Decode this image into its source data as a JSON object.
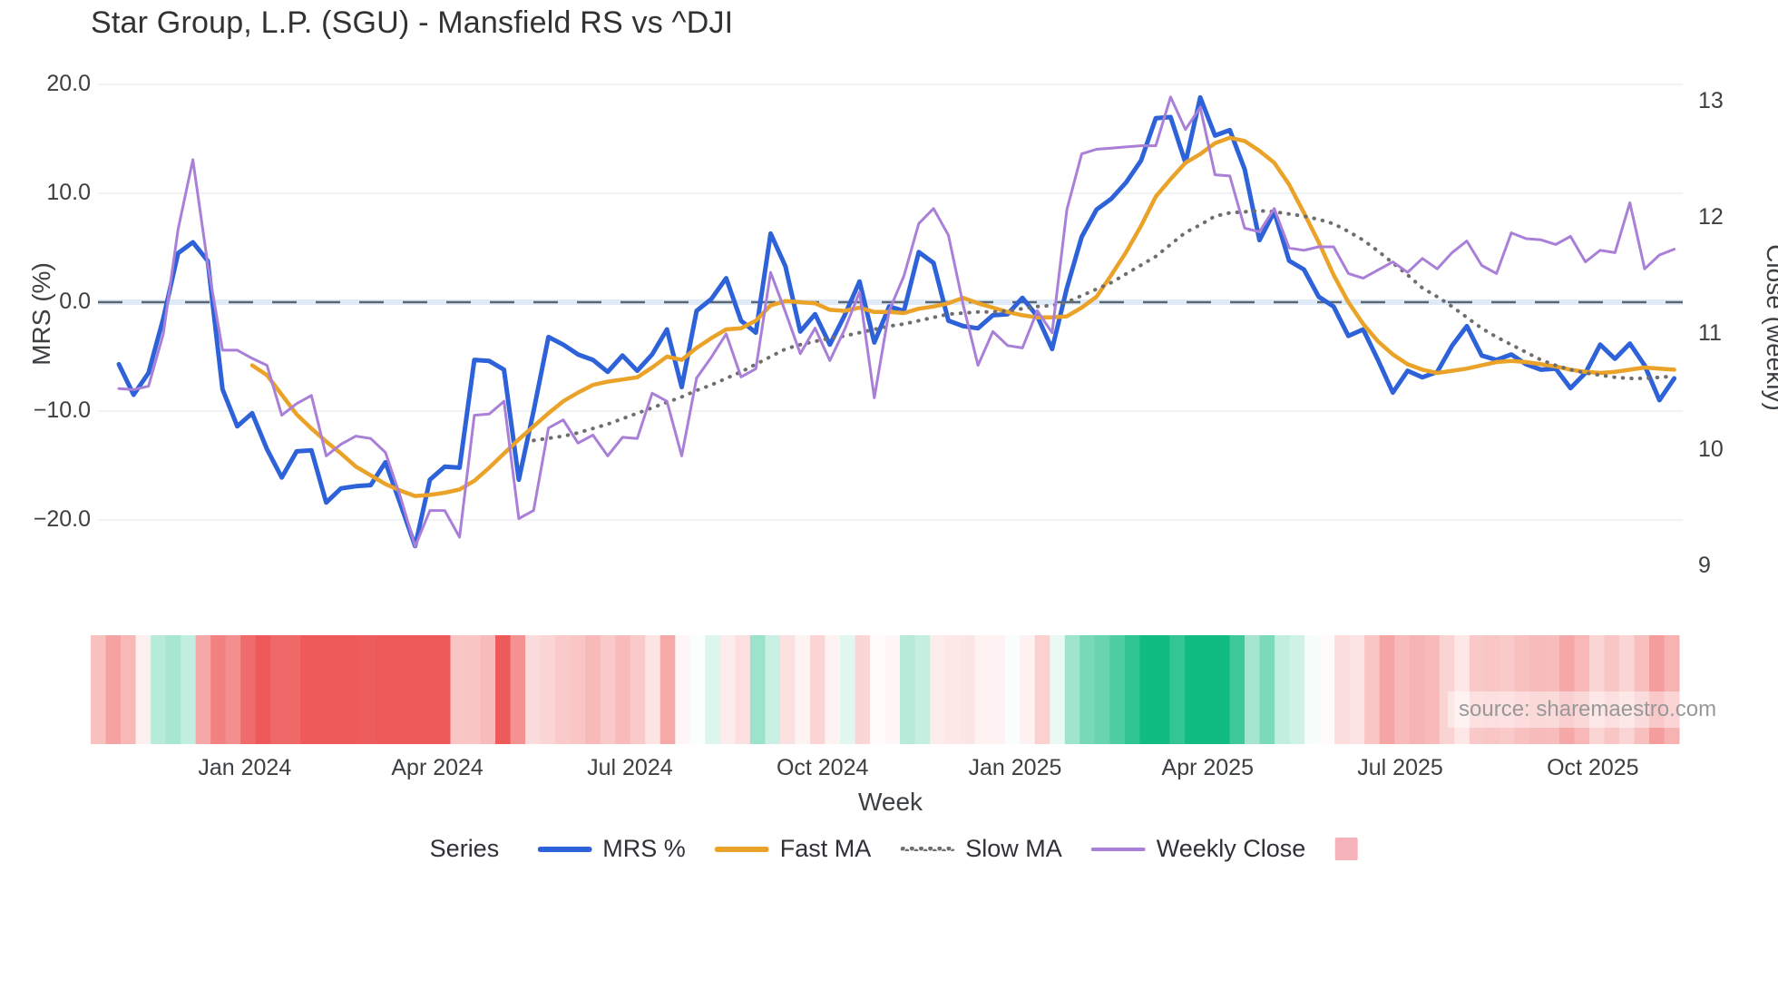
{
  "title": "Star Group, L.P. (SGU) - Mansfield RS vs ^DJI",
  "watermark": "source: sharemaestro.com",
  "axes": {
    "left": {
      "title": "MRS (%)",
      "tick_labels": [
        "20.0",
        "10.0",
        "0.0",
        "−10.0",
        "−20.0"
      ],
      "tick_values": [
        20,
        10,
        0,
        -10,
        -20
      ]
    },
    "right": {
      "title": "Close (weekly)",
      "tick_labels": [
        "13",
        "12",
        "11",
        "10",
        "9"
      ],
      "tick_values": [
        13,
        12,
        11,
        10,
        9
      ]
    },
    "x": {
      "title": "Week",
      "ticks": [
        {
          "label": "Jan 2024",
          "week": 8.5
        },
        {
          "label": "Apr 2024",
          "week": 21.5
        },
        {
          "label": "Jul 2024",
          "week": 34.5
        },
        {
          "label": "Oct 2024",
          "week": 47.5
        },
        {
          "label": "Jan 2025",
          "week": 60.5
        },
        {
          "label": "Apr 2025",
          "week": 73.5
        },
        {
          "label": "Jul 2025",
          "week": 86.5
        },
        {
          "label": "Oct 2025",
          "week": 99.5
        }
      ]
    }
  },
  "legend": {
    "series_title": "Series",
    "items": [
      {
        "label": "MRS %",
        "swatch": "line",
        "color": "#2e62d9"
      },
      {
        "label": "Fast MA",
        "swatch": "line",
        "color": "#eaa228"
      },
      {
        "label": "Slow MA",
        "swatch": "dotted",
        "color": "#6e6e6e"
      },
      {
        "label": "Weekly Close",
        "swatch": "thin-line",
        "color": "#a97fd8"
      },
      {
        "label": "",
        "swatch": "square",
        "color": "#f5b2b8"
      }
    ]
  },
  "chart_data": {
    "type": "line",
    "x_unit": "weeks",
    "n_weeks": 106,
    "x_range_note": "weekly points from early Nov 2023 to early Nov 2025",
    "left_ylim": [
      -22.75,
      22.75
    ],
    "right_ylim": [
      9,
      13.4
    ],
    "zero_reference_line": 0,
    "grid": "horizontal light gridlines at 20,10,-10,-20; dashed line at 0",
    "legend_position": "bottom center",
    "series": [
      {
        "name": "MRS %",
        "axis": "left",
        "color": "#2e62d9",
        "style": "solid",
        "width": 5,
        "values": [
          -5.7,
          -8.5,
          -6.5,
          -1.5,
          4.5,
          5.5,
          3.8,
          -8.0,
          -11.4,
          -10.2,
          -13.5,
          -16.1,
          -13.7,
          -13.6,
          -18.4,
          -17.1,
          -16.9,
          -16.8,
          -14.7,
          -18.5,
          -22.4,
          -16.3,
          -15.1,
          -15.2,
          -5.3,
          -5.4,
          -6.2,
          -16.3,
          -10.0,
          -3.2,
          -3.9,
          -4.8,
          -5.3,
          -6.4,
          -4.9,
          -6.3,
          -4.8,
          -2.5,
          -7.8,
          -0.8,
          0.3,
          2.2,
          -1.7,
          -2.8,
          6.3,
          3.3,
          -2.7,
          -1.1,
          -3.9,
          -1.2,
          1.9,
          -3.7,
          -0.4,
          -0.8,
          4.6,
          3.6,
          -1.7,
          -2.2,
          -2.4,
          -1.2,
          -1.1,
          0.4,
          -1.3,
          -4.3,
          1.3,
          6.0,
          8.5,
          9.5,
          11.0,
          13.0,
          16.9,
          17.0,
          12.8,
          18.8,
          15.3,
          15.8,
          12.2,
          5.7,
          8.3,
          3.8,
          3.0,
          0.5,
          -0.4,
          -3.1,
          -2.5,
          -5.3,
          -8.3,
          -6.3,
          -6.9,
          -6.4,
          -4.0,
          -2.2,
          -4.9,
          -5.3,
          -4.8,
          -5.7,
          -6.2,
          -6.1,
          -7.9,
          -6.5,
          -3.9,
          -5.2,
          -3.8,
          -5.8,
          -9.0,
          -7.0
        ]
      },
      {
        "name": "Fast MA",
        "axis": "left",
        "color": "#eaa228",
        "style": "solid",
        "width": 4.5,
        "values": [
          null,
          null,
          null,
          null,
          null,
          null,
          null,
          null,
          null,
          -5.8,
          -6.7,
          -8.5,
          -10.3,
          -11.6,
          -12.8,
          -13.9,
          -15.1,
          -15.9,
          -16.7,
          -17.3,
          -17.8,
          -17.7,
          -17.5,
          -17.2,
          -16.4,
          -15.2,
          -13.9,
          -12.6,
          -11.4,
          -10.2,
          -9.1,
          -8.3,
          -7.6,
          -7.3,
          -7.1,
          -6.9,
          -6.0,
          -5.0,
          -5.3,
          -4.2,
          -3.3,
          -2.5,
          -2.4,
          -1.7,
          -0.3,
          0.1,
          0.0,
          -0.1,
          -0.7,
          -0.8,
          -0.5,
          -0.9,
          -0.9,
          -1.0,
          -0.6,
          -0.4,
          -0.1,
          0.4,
          -0.1,
          -0.5,
          -0.9,
          -1.2,
          -1.4,
          -1.4,
          -1.3,
          -0.5,
          0.5,
          2.5,
          4.6,
          7.0,
          9.7,
          11.3,
          12.8,
          13.6,
          14.6,
          15.1,
          14.8,
          13.9,
          12.8,
          10.8,
          8.2,
          5.5,
          2.5,
          0.0,
          -2.0,
          -3.6,
          -4.8,
          -5.7,
          -6.2,
          -6.5,
          -6.3,
          -6.1,
          -5.8,
          -5.5,
          -5.4,
          -5.5,
          -5.7,
          -5.9,
          -6.2,
          -6.4,
          -6.5,
          -6.4,
          -6.2,
          -6.0,
          -6.1,
          -6.2
        ]
      },
      {
        "name": "Slow MA",
        "axis": "left",
        "color": "#6e6e6e",
        "style": "dotted",
        "width": 4,
        "values": [
          null,
          null,
          null,
          null,
          null,
          null,
          null,
          null,
          null,
          null,
          null,
          null,
          null,
          null,
          null,
          null,
          null,
          null,
          null,
          null,
          null,
          null,
          null,
          null,
          null,
          null,
          null,
          null,
          -12.7,
          -12.5,
          -12.3,
          -12.0,
          -11.6,
          -11.2,
          -10.7,
          -10.2,
          -9.7,
          -9.2,
          -8.7,
          -8.1,
          -7.6,
          -7.0,
          -6.4,
          -5.7,
          -5.0,
          -4.3,
          -3.9,
          -3.6,
          -3.3,
          -3.1,
          -2.8,
          -2.5,
          -2.2,
          -2.0,
          -1.7,
          -1.4,
          -1.1,
          -1.0,
          -0.9,
          -0.9,
          -0.8,
          -0.6,
          -0.4,
          -0.3,
          0.0,
          0.6,
          1.2,
          1.8,
          2.6,
          3.4,
          4.2,
          5.3,
          6.4,
          7.1,
          7.9,
          8.2,
          8.3,
          8.4,
          8.3,
          8.1,
          7.9,
          7.6,
          7.2,
          6.5,
          5.7,
          4.7,
          3.6,
          2.5,
          1.3,
          0.5,
          -0.4,
          -1.4,
          -2.4,
          -3.2,
          -3.9,
          -4.6,
          -5.3,
          -5.8,
          -6.2,
          -6.5,
          -6.7,
          -6.9,
          -7.0,
          -7.0,
          -6.9,
          -6.8
        ]
      },
      {
        "name": "Weekly Close",
        "axis": "right",
        "color": "#a97fd8",
        "style": "solid",
        "width": 3,
        "values": [
          10.53,
          10.52,
          10.55,
          11.0,
          11.9,
          12.5,
          11.6,
          10.86,
          10.86,
          10.79,
          10.73,
          10.3,
          10.4,
          10.47,
          9.95,
          10.05,
          10.12,
          10.1,
          9.98,
          9.6,
          9.17,
          9.48,
          9.48,
          9.25,
          10.3,
          10.31,
          10.42,
          9.41,
          9.48,
          10.19,
          10.26,
          10.06,
          10.13,
          9.95,
          10.11,
          10.1,
          10.49,
          10.42,
          9.95,
          10.62,
          10.8,
          11.0,
          10.63,
          10.7,
          11.53,
          11.19,
          10.83,
          11.05,
          10.77,
          11.04,
          11.36,
          10.45,
          11.2,
          11.5,
          11.95,
          12.08,
          11.85,
          11.25,
          10.73,
          11.02,
          10.9,
          10.88,
          11.2,
          11.01,
          12.07,
          12.55,
          12.59,
          12.6,
          12.61,
          12.62,
          12.62,
          13.04,
          12.76,
          12.95,
          12.37,
          12.36,
          11.91,
          11.88,
          12.08,
          11.74,
          11.72,
          11.75,
          11.75,
          11.52,
          11.48,
          11.55,
          11.62,
          11.53,
          11.65,
          11.56,
          11.7,
          11.8,
          11.59,
          11.52,
          11.87,
          11.82,
          11.81,
          11.77,
          11.84,
          11.62,
          11.72,
          11.7,
          12.13,
          11.56,
          11.68,
          11.73
        ]
      }
    ],
    "heatmap_strip": {
      "description": "weekly column strip below plot; color encodes MRS % sign/magnitude",
      "positive_color": "#10bc82",
      "negative_color": "#ee5a5a",
      "saturation_at_abs_value": 15
    }
  }
}
